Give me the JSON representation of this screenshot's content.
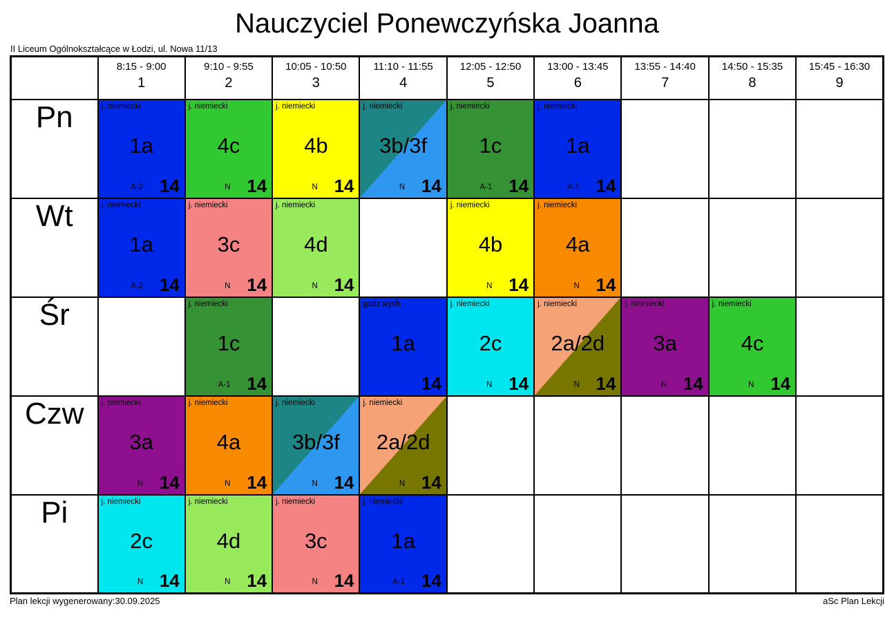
{
  "title": "Nauczyciel Ponewczyńska Joanna",
  "school": "II Liceum Ogólnokształcące w Łodzi, ul. Nowa 11/13",
  "footer": {
    "left": "Plan lekcji wygenerowany:30.09.2025",
    "right": "aSc Plan Lekcji"
  },
  "days": [
    "Pn",
    "Wt",
    "Śr",
    "Czw",
    "Pi"
  ],
  "periods": [
    {
      "num": "1",
      "time": "8:15 - 9:00"
    },
    {
      "num": "2",
      "time": "9:10 - 9:55"
    },
    {
      "num": "3",
      "time": "10:05 - 10:50"
    },
    {
      "num": "4",
      "time": "11:10 - 11:55"
    },
    {
      "num": "5",
      "time": "12:05 - 12:50"
    },
    {
      "num": "6",
      "time": "13:00 - 13:45"
    },
    {
      "num": "7",
      "time": "13:55 - 14:40"
    },
    {
      "num": "8",
      "time": "14:50 - 15:35"
    },
    {
      "num": "9",
      "time": "15:45 - 16:30"
    }
  ],
  "colors": {
    "1a": "#0028E8",
    "4c": "#32C832",
    "4b": "#FFFF00",
    "3b/3f": [
      "#1E8585",
      "#2E97F0"
    ],
    "1c": "#359235",
    "3c": "#F58383",
    "4d": "#99E95C",
    "4a": "#F88A00",
    "2c": "#00E6EE",
    "2a/2d": [
      "#F5A376",
      "#767600"
    ],
    "3a": "#8E108E"
  },
  "lessons": [
    [
      {
        "subject": "j. niemiecki",
        "class": "1a",
        "group": "A-2",
        "room": "14"
      },
      {
        "subject": "j. niemiecki",
        "class": "4c",
        "group": "N",
        "room": "14"
      },
      {
        "subject": "j. niemiecki",
        "class": "4b",
        "group": "N",
        "room": "14"
      },
      {
        "subject": "j. niemiecki",
        "class": "3b/3f",
        "group": "N",
        "room": "14"
      },
      {
        "subject": "j. niemiecki",
        "class": "1c",
        "group": "A-1",
        "room": "14"
      },
      {
        "subject": "j. niemiecki",
        "class": "1a",
        "group": "A-1",
        "room": "14"
      },
      null,
      null,
      null
    ],
    [
      {
        "subject": "j. niemiecki",
        "class": "1a",
        "group": "A-2",
        "room": "14"
      },
      {
        "subject": "j. niemiecki",
        "class": "3c",
        "group": "N",
        "room": "14"
      },
      {
        "subject": "j. niemiecki",
        "class": "4d",
        "group": "N",
        "room": "14"
      },
      null,
      {
        "subject": "j. niemiecki",
        "class": "4b",
        "group": "N",
        "room": "14"
      },
      {
        "subject": "j. niemiecki",
        "class": "4a",
        "group": "N",
        "room": "14"
      },
      null,
      null,
      null
    ],
    [
      null,
      {
        "subject": "j. niemiecki",
        "class": "1c",
        "group": "A-1",
        "room": "14"
      },
      null,
      {
        "subject": "godz.wych",
        "class": "1a",
        "group": "",
        "room": "14"
      },
      {
        "subject": "j. niemiecki",
        "class": "2c",
        "group": "N",
        "room": "14"
      },
      {
        "subject": "j. niemiecki",
        "class": "2a/2d",
        "group": "N",
        "room": "14"
      },
      {
        "subject": "j. niemiecki",
        "class": "3a",
        "group": "N",
        "room": "14"
      },
      {
        "subject": "j. niemiecki",
        "class": "4c",
        "group": "N",
        "room": "14"
      },
      null
    ],
    [
      {
        "subject": "j. niemiecki",
        "class": "3a",
        "group": "N",
        "room": "14"
      },
      {
        "subject": "j. niemiecki",
        "class": "4a",
        "group": "N",
        "room": "14"
      },
      {
        "subject": "j. niemiecki",
        "class": "3b/3f",
        "group": "N",
        "room": "14"
      },
      {
        "subject": "j. niemiecki",
        "class": "2a/2d",
        "group": "N",
        "room": "14"
      },
      null,
      null,
      null,
      null,
      null
    ],
    [
      {
        "subject": "j. niemiecki",
        "class": "2c",
        "group": "N",
        "room": "14"
      },
      {
        "subject": "j. niemiecki",
        "class": "4d",
        "group": "N",
        "room": "14"
      },
      {
        "subject": "j. niemiecki",
        "class": "3c",
        "group": "N",
        "room": "14"
      },
      {
        "subject": "j. niemiecki",
        "class": "1a",
        "group": "A-1",
        "room": "14"
      },
      null,
      null,
      null,
      null,
      null
    ]
  ]
}
